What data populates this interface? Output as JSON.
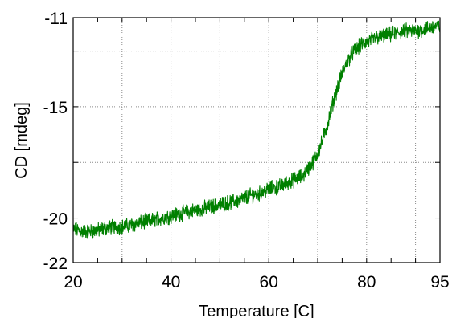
{
  "chart_data": {
    "type": "line",
    "title": "",
    "xlabel": "Temperature [C]",
    "ylabel": "CD [mdeg]",
    "xlim": [
      20,
      95
    ],
    "ylim": [
      -22,
      -11
    ],
    "grid": true,
    "x_ticks": [
      20,
      40,
      60,
      80,
      95
    ],
    "x_tick_labels": [
      "20",
      "40",
      "60",
      "80",
      "95"
    ],
    "y_ticks": [
      -22,
      -20,
      -15,
      -11
    ],
    "y_tick_labels": [
      "-22",
      "-20",
      "-15",
      "-11"
    ],
    "x_grid": [
      30,
      40,
      50,
      60,
      70,
      80,
      90
    ],
    "y_grid": [
      -20,
      -17.5,
      -15,
      -12.5
    ],
    "series": [
      {
        "color": "#008000",
        "x": [
          20,
          22,
          24,
          26,
          28,
          30,
          32,
          34,
          36,
          38,
          40,
          42,
          44,
          46,
          48,
          50,
          52,
          54,
          56,
          58,
          60,
          62,
          64,
          66,
          67,
          68,
          69,
          70,
          71,
          72,
          73,
          74,
          75,
          76,
          77,
          78,
          79,
          80,
          81,
          82,
          84,
          86,
          88,
          90,
          92,
          94,
          95
        ],
        "y": [
          -20.5,
          -20.6,
          -20.6,
          -20.5,
          -20.4,
          -20.4,
          -20.3,
          -20.2,
          -20.1,
          -20.0,
          -19.9,
          -19.8,
          -19.7,
          -19.6,
          -19.5,
          -19.4,
          -19.3,
          -19.2,
          -19.0,
          -18.9,
          -18.7,
          -18.6,
          -18.4,
          -18.2,
          -18.1,
          -17.8,
          -17.5,
          -17.1,
          -16.5,
          -15.8,
          -14.9,
          -14.2,
          -13.5,
          -13.0,
          -12.6,
          -12.4,
          -12.2,
          -12.1,
          -12.0,
          -11.9,
          -11.8,
          -11.7,
          -11.6,
          -11.6,
          -11.5,
          -11.4,
          -11.4
        ]
      }
    ]
  }
}
